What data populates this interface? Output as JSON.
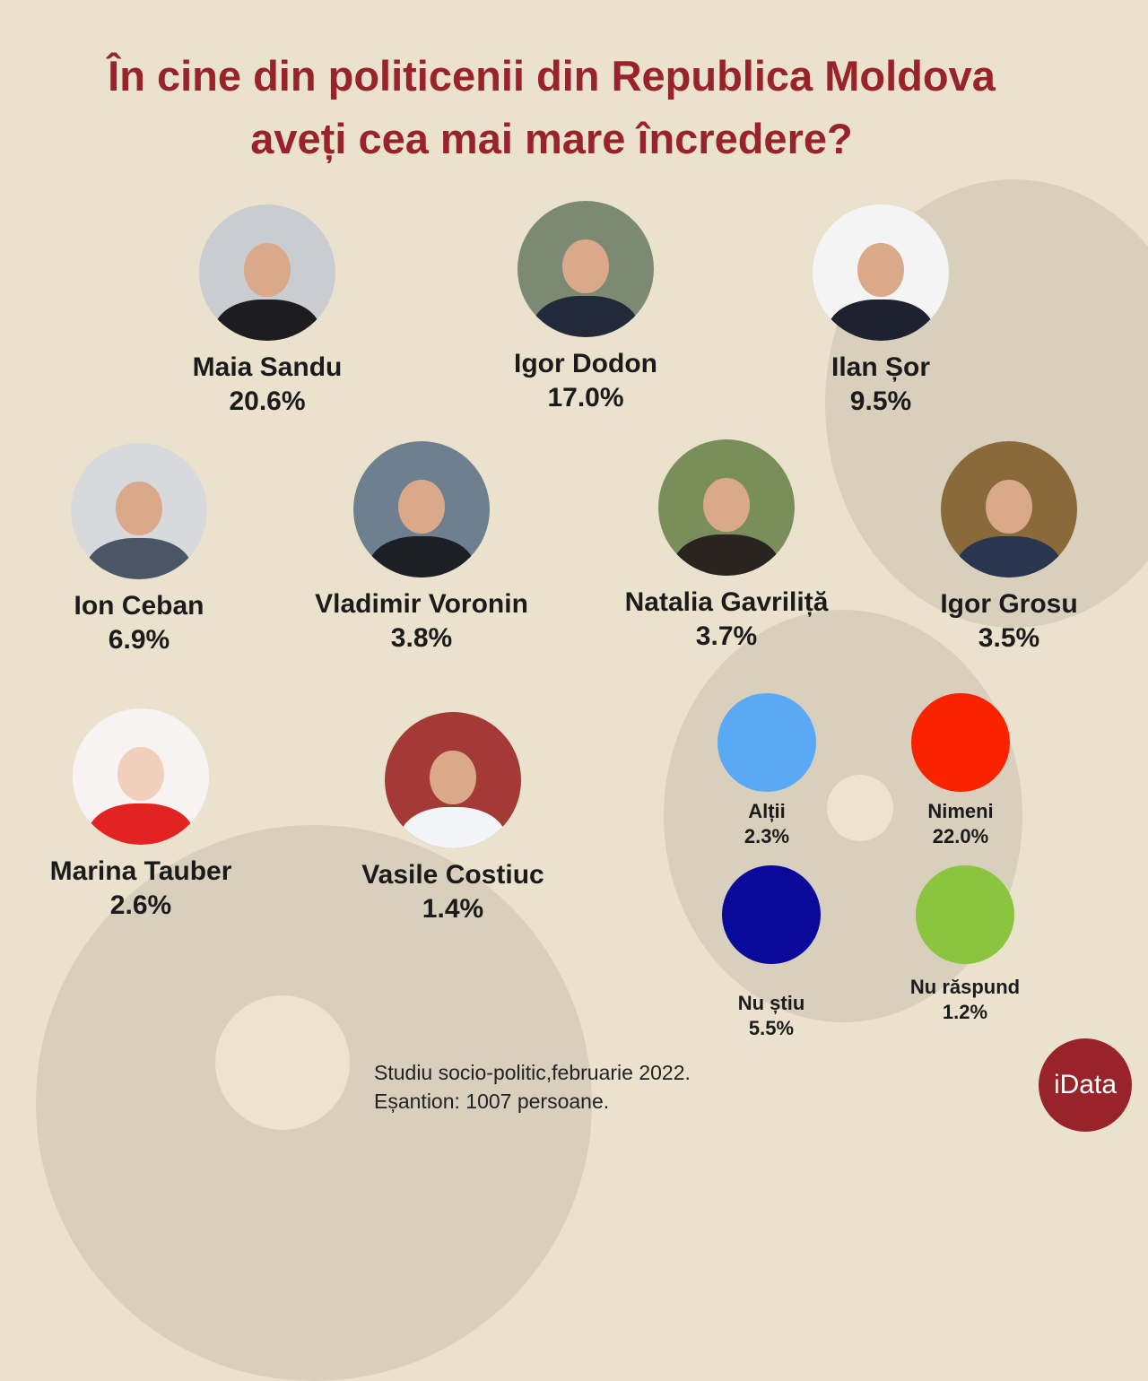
{
  "title": {
    "line1": "În cine din politicenii din Republica Moldova",
    "line2": "aveți cea mai mare încredere?"
  },
  "chart_data": {
    "type": "table",
    "title": "În cine din politicenii din Republica Moldova aveți cea mai mare încredere?",
    "categories": [
      "Maia Sandu",
      "Igor Dodon",
      "Ilan Șor",
      "Ion Ceban",
      "Vladimir Voronin",
      "Natalia Gavriliță",
      "Igor Grosu",
      "Marina Tauber",
      "Vasile Costiuc",
      "Alții",
      "Nimeni",
      "Nu știu",
      "Nu răspund"
    ],
    "values": [
      20.6,
      17.0,
      9.5,
      6.9,
      3.8,
      3.7,
      3.5,
      2.6,
      1.4,
      2.3,
      22.0,
      5.5,
      1.2
    ],
    "unit": "%"
  },
  "people": [
    {
      "name": "Maia Sandu",
      "pct": "20.6%"
    },
    {
      "name": "Igor Dodon",
      "pct": "17.0%"
    },
    {
      "name": "Ilan Șor",
      "pct": "9.5%"
    },
    {
      "name": "Ion Ceban",
      "pct": "6.9%"
    },
    {
      "name": "Vladimir Voronin",
      "pct": "3.8%"
    },
    {
      "name": "Natalia Gavriliță",
      "pct": "3.7%"
    },
    {
      "name": "Igor Grosu",
      "pct": "3.5%"
    },
    {
      "name": "Marina Tauber",
      "pct": "2.6%"
    },
    {
      "name": "Vasile Costiuc",
      "pct": "1.4%"
    }
  ],
  "options": [
    {
      "label": "Alții",
      "pct": "2.3%",
      "color": "#5aa9f5"
    },
    {
      "label": "Nimeni",
      "pct": "22.0%",
      "color": "#fb2200"
    },
    {
      "label": "Nu știu",
      "pct": "5.5%",
      "color": "#0a0a9a"
    },
    {
      "label": "Nu răspund",
      "pct": "1.2%",
      "color": "#8bc43f"
    }
  ],
  "footer": {
    "line1": "Studiu socio-politic,februarie 2022.",
    "line2": "Eșantion: 1007 persoane."
  },
  "logo": "iData"
}
